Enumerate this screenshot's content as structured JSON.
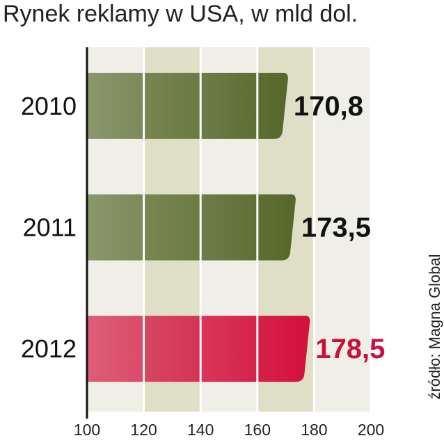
{
  "chart_data": {
    "type": "bar",
    "orientation": "horizontal",
    "title": "Rynek reklamy w USA, w mld dol.",
    "source": "źródło: Magna Global",
    "categories": [
      "2010",
      "2011",
      "2012"
    ],
    "values": [
      170.8,
      173.5,
      178.5
    ],
    "value_labels": [
      "170,8",
      "173,5",
      "178,5"
    ],
    "colors": [
      "#56672a",
      "#56672a",
      "#d3103c"
    ],
    "label_colors": [
      "#111111",
      "#111111",
      "#c8103a"
    ],
    "xlim": [
      100,
      200
    ],
    "xticks": [
      100,
      120,
      140,
      160,
      180,
      200
    ],
    "grid": true
  }
}
